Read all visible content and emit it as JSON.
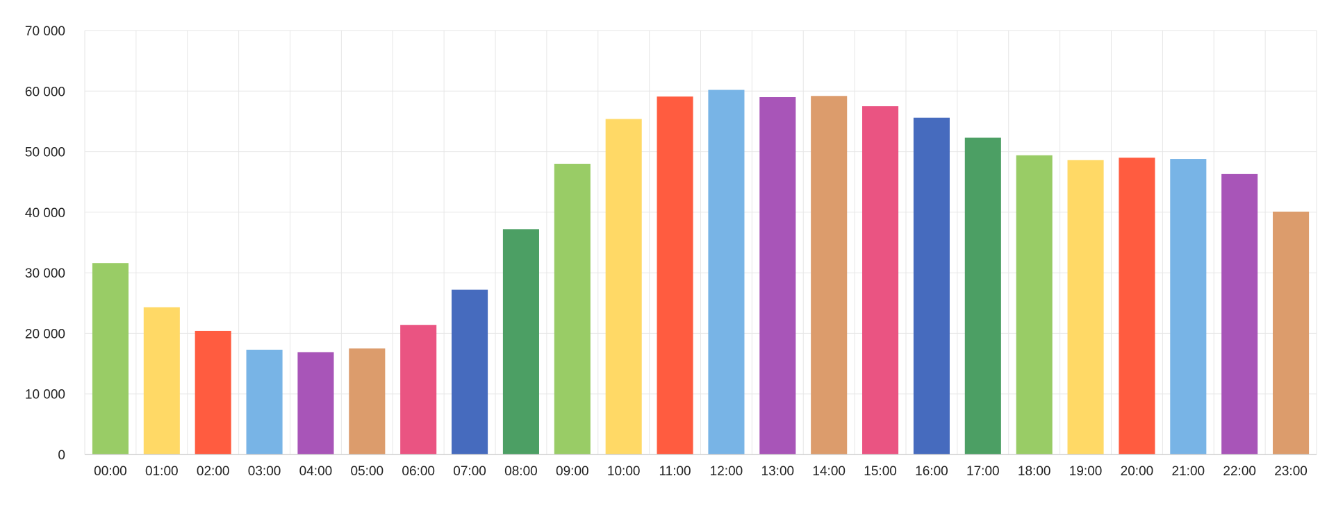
{
  "chart_data": {
    "type": "bar",
    "title": "",
    "xlabel": "",
    "ylabel": "",
    "ylim": [
      0,
      70000
    ],
    "yticks": [
      0,
      10000,
      20000,
      30000,
      40000,
      50000,
      60000,
      70000
    ],
    "ytick_labels": [
      "0",
      "10 000",
      "20 000",
      "30 000",
      "40 000",
      "50 000",
      "60 000",
      "70 000"
    ],
    "grid": true,
    "legend": "none",
    "categories": [
      "00:00",
      "01:00",
      "02:00",
      "03:00",
      "04:00",
      "05:00",
      "06:00",
      "07:00",
      "08:00",
      "09:00",
      "10:00",
      "11:00",
      "12:00",
      "13:00",
      "14:00",
      "15:00",
      "16:00",
      "17:00",
      "18:00",
      "19:00",
      "20:00",
      "21:00",
      "22:00",
      "23:00"
    ],
    "values": [
      31600,
      24300,
      20400,
      17300,
      16900,
      17500,
      21400,
      27200,
      37200,
      48000,
      55400,
      59100,
      60200,
      59000,
      59200,
      57500,
      55600,
      52300,
      49400,
      48600,
      49000,
      48800,
      46300,
      40100
    ],
    "bar_colors": [
      "#99cc66",
      "#ffd966",
      "#ff5c40",
      "#78b4e6",
      "#a855b8",
      "#dc9c6c",
      "#ea5482",
      "#466bbe",
      "#4c9f64"
    ]
  }
}
